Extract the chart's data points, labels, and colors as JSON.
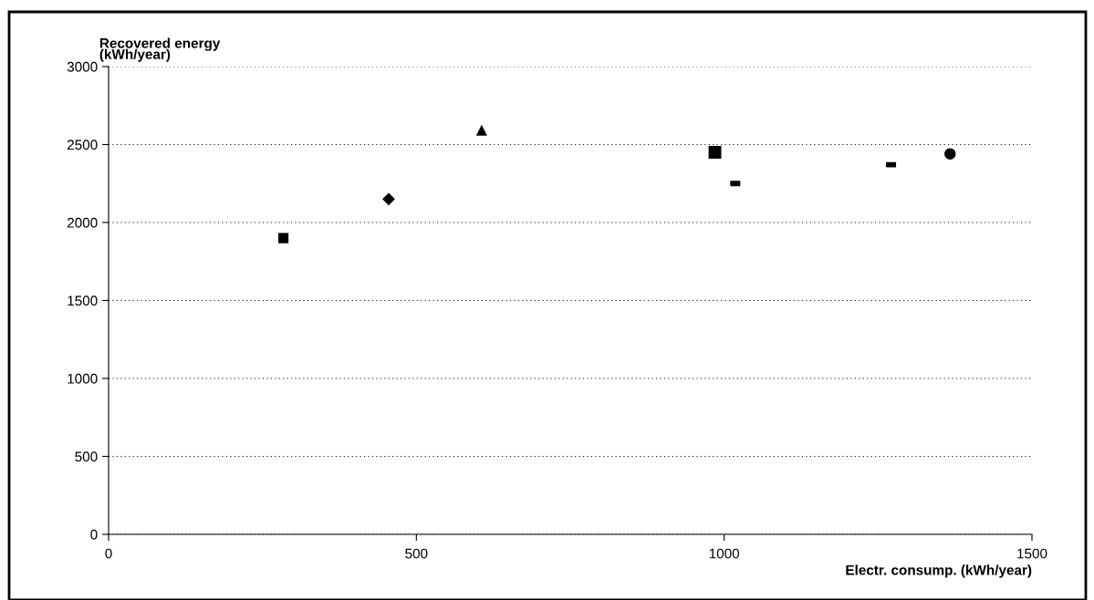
{
  "chart_data": {
    "type": "scatter",
    "xlabel": "Electr. consump. (kWh/year)",
    "ylabel": "Recovered energy\n(kWh/year)",
    "xlim": [
      0,
      1500
    ],
    "xticks": [
      0,
      500,
      1000,
      1500
    ],
    "ylim": [
      0,
      3000
    ],
    "yticks": [
      0,
      500,
      1000,
      1500,
      2000,
      2500,
      3000
    ],
    "grid": "y",
    "legend": false,
    "series": [
      {
        "color": "#000000",
        "marker": "square",
        "x": [
          284
        ],
        "values": [
          1900
        ]
      },
      {
        "color": "#000000",
        "marker": "diamond",
        "x": [
          455
        ],
        "values": [
          2150
        ]
      },
      {
        "color": "#000000",
        "marker": "triangle",
        "x": [
          606
        ],
        "values": [
          2590
        ]
      },
      {
        "color": "#000000",
        "marker": "square",
        "x": [
          985
        ],
        "values": [
          2450
        ]
      },
      {
        "color": "#000000",
        "x": [
          1018
        ],
        "values": [
          2250
        ]
      },
      {
        "color": "#000000",
        "x": [
          1271
        ],
        "values": [
          2370
        ]
      },
      {
        "color": "#000000",
        "marker": "circle",
        "x": [
          1367
        ],
        "values": [
          2440
        ]
      }
    ]
  }
}
